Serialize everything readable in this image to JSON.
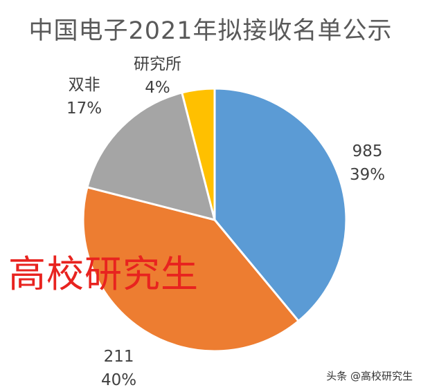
{
  "chart_data": {
    "type": "pie",
    "title": "中国电子2021年拟接收名单公示",
    "slices": [
      {
        "category": "985",
        "value": 39,
        "label": "39%",
        "color": "#5b9bd5"
      },
      {
        "category": "211",
        "value": 40,
        "label": "40%",
        "color": "#ed7d31"
      },
      {
        "category": "双非",
        "value": 17,
        "label": "17%",
        "color": "#a5a5a5"
      },
      {
        "category": "研究所",
        "value": 4,
        "label": "4%",
        "color": "#ffc000"
      }
    ],
    "legend": "none"
  },
  "watermark": {
    "text": "高校研究生",
    "color": "#e8231f"
  },
  "source": {
    "text": "头条 @高校研究生"
  }
}
